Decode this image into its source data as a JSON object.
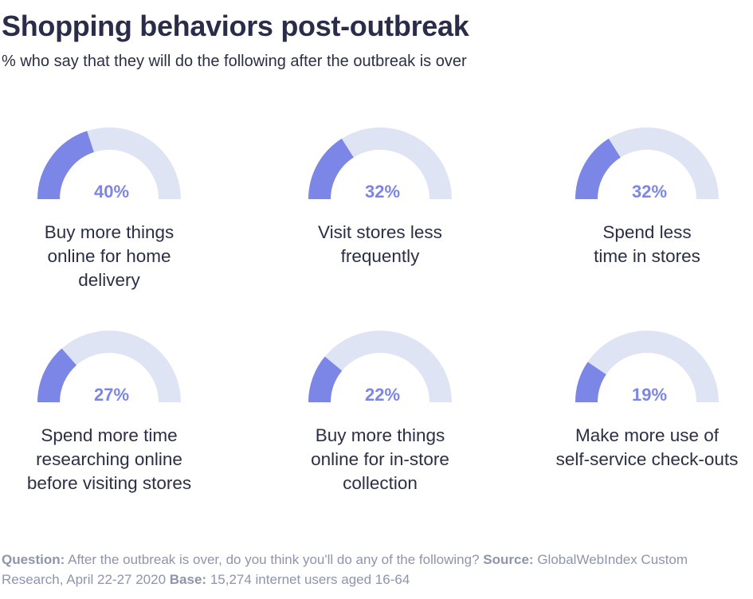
{
  "title": "Shopping behaviors post-outbreak",
  "subtitle": "% who say that they will do the following after the outbreak is over",
  "colors": {
    "filled": "#7b86e6",
    "track": "#dfe4f5",
    "value_text": "#7b86e6"
  },
  "chart_data": {
    "type": "gauge",
    "title": "Shopping behaviors post-outbreak",
    "subtitle": "% who say that they will do the following after the outbreak is over",
    "value_range": [
      0,
      100
    ],
    "unit": "%",
    "items": [
      {
        "label_lines": [
          "Buy more things",
          "online for home",
          "delivery"
        ],
        "value": 40,
        "value_label": "40%"
      },
      {
        "label_lines": [
          "Visit stores less",
          "frequently"
        ],
        "value": 32,
        "value_label": "32%"
      },
      {
        "label_lines": [
          "Spend less",
          "time in stores"
        ],
        "value": 32,
        "value_label": "32%"
      },
      {
        "label_lines": [
          "Spend more time",
          "researching online",
          "before visiting stores"
        ],
        "value": 27,
        "value_label": "27%"
      },
      {
        "label_lines": [
          "Buy more things",
          "online for in-store",
          "collection"
        ],
        "value": 22,
        "value_label": "22%"
      },
      {
        "label_lines": [
          "Make more use of",
          "self-service check-outs"
        ],
        "value": 19,
        "value_label": "19%"
      }
    ]
  },
  "footer": {
    "question_label": "Question:",
    "question_text": "After the outbreak is over, do you think you'll do any of the following?",
    "source_label": "Source:",
    "source_text": "GlobalWebIndex Custom Research, April 22-27 2020",
    "base_label": "Base:",
    "base_text": "15,274 internet users aged 16-64"
  }
}
